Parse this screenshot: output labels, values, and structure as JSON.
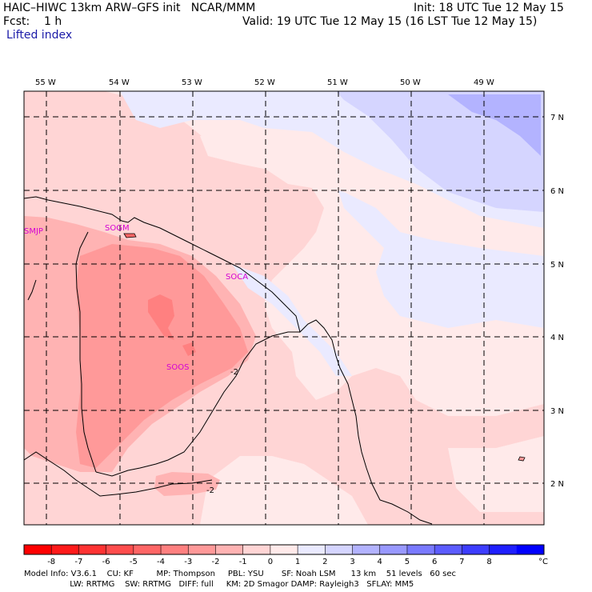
{
  "header": {
    "title": "HAIC–HIWC 13km ARW–GFS init   NCAR/MMM",
    "init": "Init: 18 UTC Tue 12 May 15",
    "fcst": "Fcst:    1 h",
    "valid": "Valid: 19 UTC Tue 12 May 15 (16 LST Tue 12 May 15)",
    "field": "Lifted index"
  },
  "lon_labels": [
    "55 W",
    "54 W",
    "53 W",
    "52 W",
    "51 W",
    "50 W",
    "49 W"
  ],
  "lat_labels": [
    "7 N",
    "6 N",
    "5 N",
    "4 N",
    "3 N",
    "2 N"
  ],
  "stations": [
    "SMJP",
    "SOGM",
    "SOCA",
    "SOOS"
  ],
  "contour_labels": [
    "-2",
    "-2"
  ],
  "colorbar": {
    "ticks": [
      "-8",
      "-7",
      "-6",
      "-5",
      "-4",
      "-3",
      "-2",
      "-1",
      "0",
      "1",
      "2",
      "3",
      "4",
      "5",
      "6",
      "7",
      "8"
    ],
    "unit": "°C",
    "colors": [
      "#ff0000",
      "#ff1a1a",
      "#ff3333",
      "#ff4d4d",
      "#ff6666",
      "#ff8080",
      "#ff9999",
      "#ffb3b3",
      "#ffd5d5",
      "#ffeaea",
      "#eaeaff",
      "#d5d5ff",
      "#b3b3ff",
      "#9999ff",
      "#7a7aff",
      "#5c5cff",
      "#3d3dff",
      "#1f1fff",
      "#0000ff"
    ]
  },
  "footer": {
    "line1": "Model Info: V3.6.1    CU: KF         MP: Thompson     PBL: YSU       SF: Noah LSM      13 km    51 levels   60 sec",
    "line2": "                  LW: RRTMG    SW: RRTMG   DIFF: full     KM: 2D Smagor DAMP: Rayleigh3   SFLAY: MM5"
  }
}
